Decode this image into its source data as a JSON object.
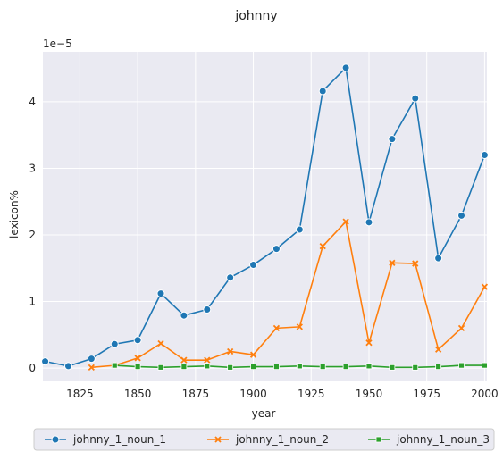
{
  "chart_data": {
    "type": "line",
    "title": "johnny",
    "xlabel": "year",
    "ylabel": "lexicon%",
    "y_offset_label": "1e−5",
    "xlim": [
      1809,
      2001
    ],
    "ylim": [
      -0.2,
      4.75
    ],
    "y_scale_exponent": -5,
    "x_ticks": [
      1825,
      1850,
      1875,
      1900,
      1925,
      1950,
      1975,
      2000
    ],
    "y_ticks": [
      0,
      1,
      2,
      3,
      4
    ],
    "grid": true,
    "legend_position": "bottom-center",
    "series": [
      {
        "name": "johnny_1_noun_1",
        "color": "#1f77b4",
        "marker": "circle",
        "x": [
          1810,
          1820,
          1830,
          1840,
          1850,
          1860,
          1870,
          1880,
          1890,
          1900,
          1910,
          1920,
          1930,
          1940,
          1950,
          1960,
          1970,
          1980,
          1990,
          2000
        ],
        "y": [
          0.1,
          0.03,
          0.14,
          0.36,
          0.42,
          1.12,
          0.79,
          0.88,
          1.36,
          1.55,
          1.79,
          2.08,
          4.16,
          4.51,
          2.19,
          3.44,
          4.05,
          1.65,
          2.29,
          3.2
        ]
      },
      {
        "name": "johnny_1_noun_2",
        "color": "#ff7f0e",
        "marker": "x",
        "x": [
          1830,
          1840,
          1850,
          1860,
          1870,
          1880,
          1890,
          1900,
          1910,
          1920,
          1930,
          1940,
          1950,
          1960,
          1970,
          1980,
          1990,
          2000
        ],
        "y": [
          0.01,
          0.04,
          0.15,
          0.37,
          0.12,
          0.12,
          0.25,
          0.2,
          0.6,
          0.62,
          1.83,
          2.2,
          0.38,
          1.58,
          1.57,
          0.28,
          0.6,
          1.22
        ]
      },
      {
        "name": "johnny_1_noun_3",
        "color": "#2ca02c",
        "marker": "square",
        "x": [
          1840,
          1850,
          1860,
          1870,
          1880,
          1890,
          1900,
          1910,
          1920,
          1930,
          1940,
          1950,
          1960,
          1970,
          1980,
          1990,
          2000
        ],
        "y": [
          0.04,
          0.02,
          0.01,
          0.02,
          0.03,
          0.01,
          0.02,
          0.02,
          0.03,
          0.02,
          0.02,
          0.03,
          0.01,
          0.01,
          0.02,
          0.04,
          0.04
        ]
      }
    ]
  }
}
